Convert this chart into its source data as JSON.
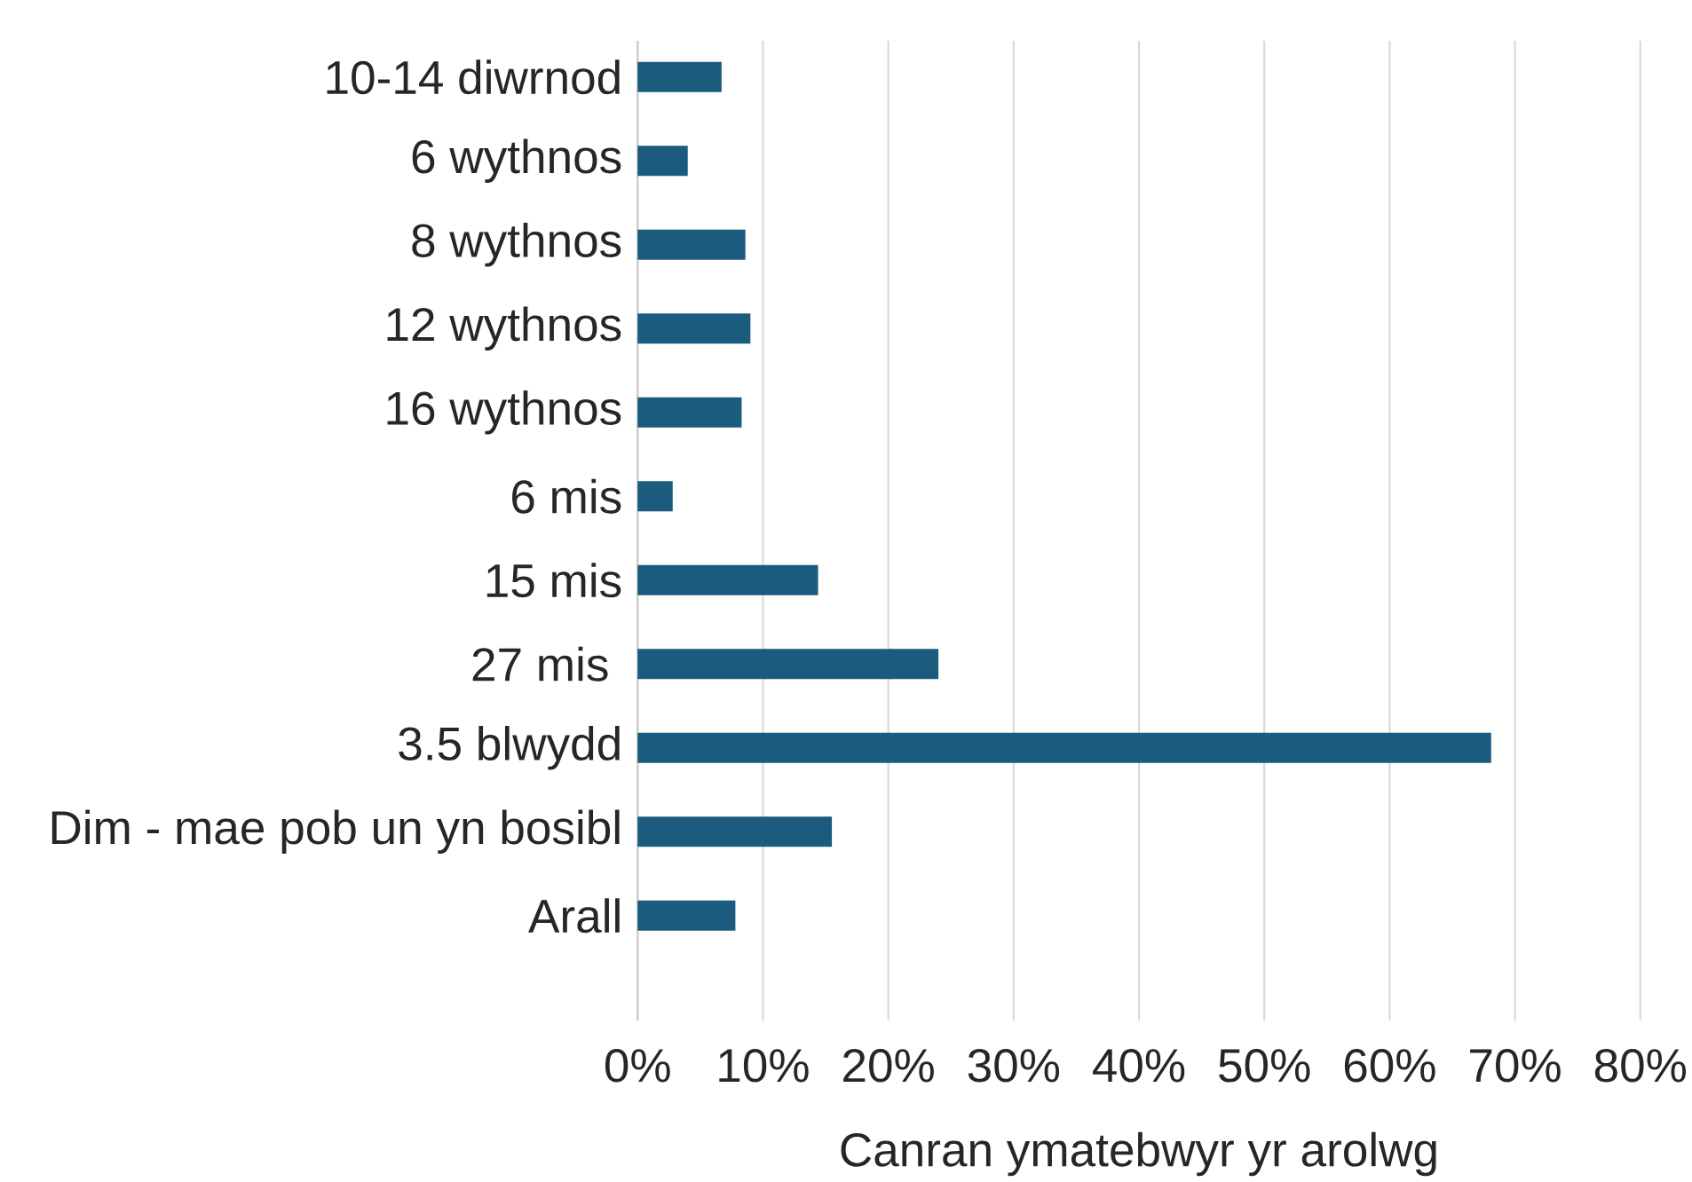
{
  "chart_data": {
    "type": "bar",
    "orientation": "horizontal",
    "xlabel": "Canran ymatebwyr yr arolwg",
    "categories": [
      "10-14 diwrnod",
      "6 wythnos",
      "8 wythnos",
      "12 wythnos",
      "16 wythnos",
      "6 mis",
      "15 mis",
      "27 mis ",
      "3.5 blwydd",
      "Dim - mae pob un yn bosibl",
      "Arall"
    ],
    "values": [
      6.7,
      4.0,
      8.6,
      9.0,
      8.3,
      2.8,
      14.4,
      24.0,
      68.1,
      15.5,
      7.8
    ],
    "color": "#1b5c7e",
    "xlim": [
      0,
      80
    ],
    "xticks": [
      {
        "value": 0,
        "label": "0%"
      },
      {
        "value": 10,
        "label": "10%"
      },
      {
        "value": 20,
        "label": "20%"
      },
      {
        "value": 30,
        "label": "30%"
      },
      {
        "value": 40,
        "label": "40%"
      },
      {
        "value": 50,
        "label": "50%"
      },
      {
        "value": 60,
        "label": "60%"
      },
      {
        "value": 70,
        "label": "70%"
      },
      {
        "value": 80,
        "label": "80%"
      }
    ],
    "grid": "x"
  }
}
